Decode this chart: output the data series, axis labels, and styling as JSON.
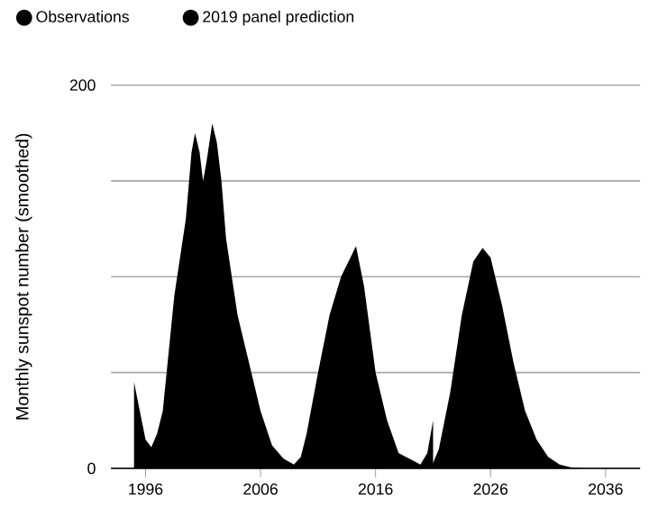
{
  "chart_data": {
    "type": "area",
    "ylabel": "Monthly sunspot number (smoothed)",
    "xlim": [
      1993,
      2039
    ],
    "ylim": [
      0,
      200
    ],
    "xticks": [
      1996,
      2006,
      2016,
      2026,
      2036
    ],
    "yticks": [
      0,
      {
        "value": 50,
        "label": null
      },
      {
        "value": 100,
        "label": null
      },
      {
        "value": 150,
        "label": null
      },
      200
    ],
    "grid": "y",
    "legend": "top left",
    "series": [
      {
        "name": "Observations",
        "color": "#000000",
        "x": [
          1995.0,
          1995.5,
          1996.0,
          1996.5,
          1997.0,
          1997.5,
          1998.0,
          1998.5,
          1999.0,
          1999.5,
          2000.0,
          2000.3,
          2000.7,
          2001.0,
          2001.3,
          2001.8,
          2002.2,
          2002.6,
          2003.0,
          2004.0,
          2005.0,
          2006.0,
          2007.0,
          2008.0,
          2008.9,
          2009.5,
          2010.0,
          2011.0,
          2012.0,
          2013.0,
          2014.3,
          2015.0,
          2016.0,
          2017.0,
          2018.0,
          2019.9,
          2020.5,
          2021.0
        ],
        "values": [
          45,
          30,
          15,
          11,
          18,
          30,
          60,
          90,
          110,
          130,
          165,
          175,
          165,
          150,
          160,
          180,
          170,
          150,
          120,
          80,
          55,
          30,
          12,
          5,
          2,
          6,
          18,
          50,
          80,
          100,
          116,
          95,
          50,
          25,
          8,
          2,
          8,
          25
        ]
      },
      {
        "name": "2019 panel prediction",
        "color": "#000000",
        "x": [
          2020.8,
          2021.5,
          2022.5,
          2023.5,
          2024.5,
          2025.3,
          2026.0,
          2027.0,
          2028.0,
          2029.0,
          2030.0,
          2031.0,
          2032.0,
          2033.0,
          2034.0
        ],
        "values": [
          0,
          10,
          40,
          80,
          108,
          115,
          110,
          85,
          55,
          30,
          15,
          6,
          2,
          0.5,
          0
        ]
      }
    ]
  }
}
